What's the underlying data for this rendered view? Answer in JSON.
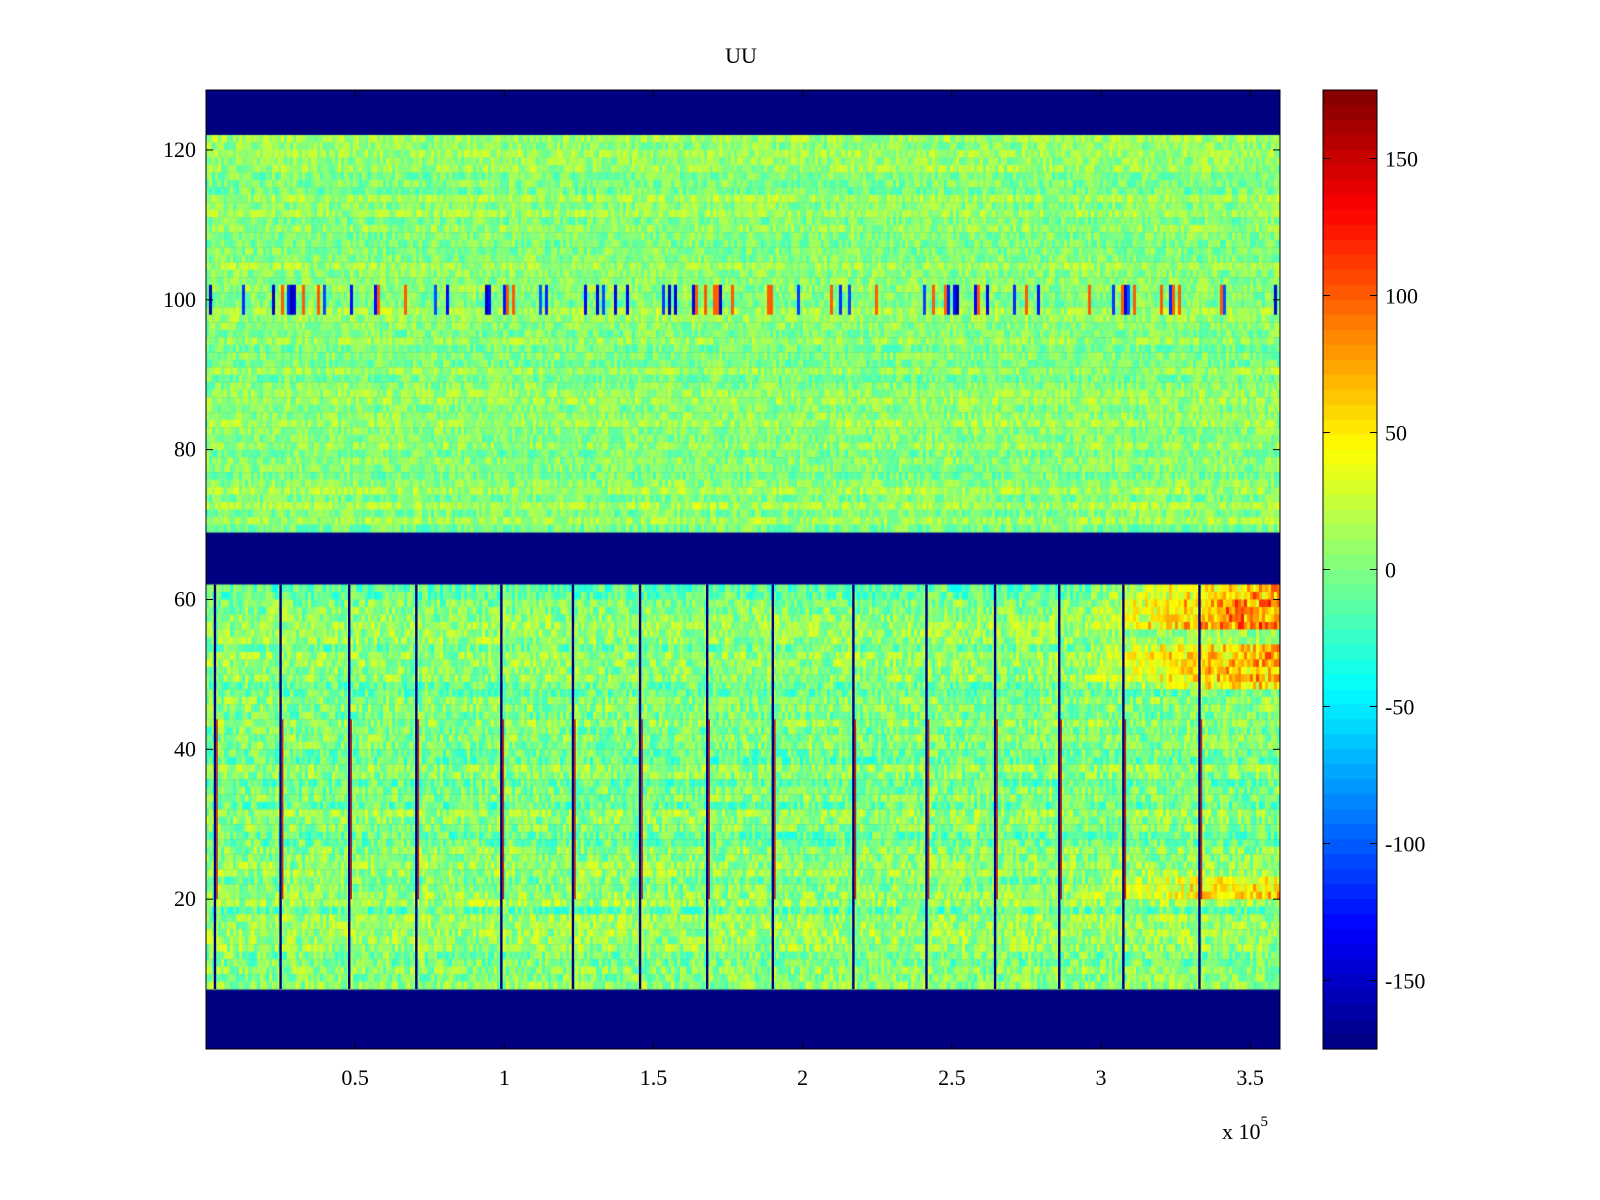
{
  "chart_data": {
    "type": "heatmap",
    "title": "UU",
    "xlabel": "",
    "ylabel": "",
    "x_multiplier_label": "x 10",
    "x_multiplier_exponent": "5",
    "xlim": [
      0,
      360000
    ],
    "ylim": [
      0,
      128
    ],
    "x_ticks": [
      {
        "value": 50000,
        "label": "0.5"
      },
      {
        "value": 100000,
        "label": "1"
      },
      {
        "value": 150000,
        "label": "1.5"
      },
      {
        "value": 200000,
        "label": "2"
      },
      {
        "value": 250000,
        "label": "2.5"
      },
      {
        "value": 300000,
        "label": "3"
      },
      {
        "value": 350000,
        "label": "3.5"
      }
    ],
    "y_ticks": [
      {
        "value": 20,
        "label": "20"
      },
      {
        "value": 40,
        "label": "40"
      },
      {
        "value": 60,
        "label": "60"
      },
      {
        "value": 80,
        "label": "80"
      },
      {
        "value": 100,
        "label": "100"
      },
      {
        "value": 120,
        "label": "120"
      }
    ],
    "colorbar": {
      "colormap": "jet",
      "clim": [
        -175,
        175
      ],
      "ticks": [
        {
          "value": 150,
          "label": "150"
        },
        {
          "value": 100,
          "label": "100"
        },
        {
          "value": 50,
          "label": "50"
        },
        {
          "value": 0,
          "label": "0"
        },
        {
          "value": -50,
          "label": "-50"
        },
        {
          "value": -100,
          "label": "-100"
        },
        {
          "value": -150,
          "label": "-150"
        }
      ]
    },
    "background_value": -175,
    "blocks": [
      {
        "y_range": [
          8,
          62
        ],
        "base_value": 0,
        "noise": 28
      },
      {
        "y_range": [
          69,
          122
        ],
        "base_value": 5,
        "noise": 22
      }
    ],
    "empty_bands": [
      [
        0,
        8
      ],
      [
        62,
        69
      ],
      [
        122,
        128
      ]
    ],
    "artifact_rows": [
      {
        "y_range": [
          98,
          102
        ],
        "value": -160
      }
    ],
    "artifact_columns_x": [
      3000,
      25000,
      48000,
      70500,
      99000,
      123000,
      145500,
      168000,
      190000,
      217000,
      241500,
      264500,
      286000,
      307500,
      333000
    ],
    "hot_trend": [
      {
        "x_range": [
          290000,
          360000
        ],
        "y_range": [
          56,
          62
        ],
        "value": 90
      },
      {
        "x_range": [
          290000,
          360000
        ],
        "y_range": [
          48,
          54
        ],
        "value": 75
      },
      {
        "x_range": [
          290000,
          360000
        ],
        "y_range": [
          20,
          23
        ],
        "value": 55
      }
    ]
  }
}
